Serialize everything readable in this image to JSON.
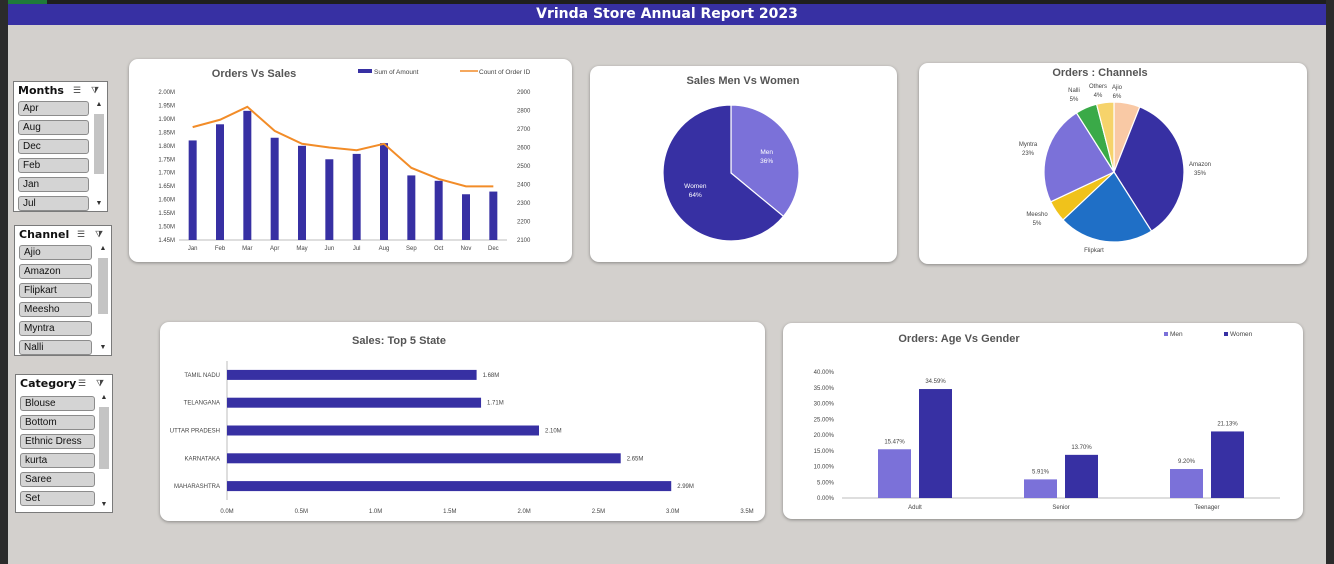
{
  "title": "Vrinda Store Annual Report 2023",
  "colors": {
    "header": "#3730a3",
    "series_dark": "#3730a3",
    "series_light": "#7b71d9",
    "line": "#f28c28"
  },
  "slicers": {
    "months": {
      "title": "Months",
      "items": [
        "Apr",
        "Aug",
        "Dec",
        "Feb",
        "Jan",
        "Jul"
      ]
    },
    "channel": {
      "title": "Channel",
      "items": [
        "Ajio",
        "Amazon",
        "Flipkart",
        "Meesho",
        "Myntra",
        "Nalli"
      ]
    },
    "category": {
      "title": "Category",
      "items": [
        "Blouse",
        "Bottom",
        "Ethnic Dress",
        "kurta",
        "Saree",
        "Set"
      ]
    },
    "icons": {
      "multi_select": "multi-select-icon",
      "clear_filter": "clear-filter-icon",
      "scroll_up": "scroll-up-icon",
      "scroll_down": "scroll-down-icon"
    }
  },
  "chart_data": [
    {
      "id": "orders_vs_sales",
      "type": "bar",
      "title": "Orders Vs Sales",
      "categories": [
        "Jan",
        "Feb",
        "Mar",
        "Apr",
        "May",
        "Jun",
        "Jul",
        "Aug",
        "Sep",
        "Oct",
        "Nov",
        "Dec"
      ],
      "series": [
        {
          "name": "Sum of Amount",
          "type": "bar",
          "axis": "left",
          "values": [
            1.82,
            1.88,
            1.93,
            1.83,
            1.8,
            1.75,
            1.77,
            1.81,
            1.69,
            1.67,
            1.62,
            1.63
          ]
        },
        {
          "name": "Count of Order ID",
          "type": "line",
          "axis": "right",
          "values": [
            2710,
            2750,
            2820,
            2690,
            2620,
            2600,
            2585,
            2620,
            2490,
            2430,
            2390,
            2390
          ]
        }
      ],
      "y_left_ticks": [
        "1.45M",
        "1.50M",
        "1.55M",
        "1.60M",
        "1.65M",
        "1.70M",
        "1.75M",
        "1.80M",
        "1.85M",
        "1.90M",
        "1.95M",
        "2.00M"
      ],
      "ylim_left": [
        1.45,
        2.0
      ],
      "y_right_ticks": [
        "2100",
        "2200",
        "2300",
        "2400",
        "2500",
        "2600",
        "2700",
        "2800",
        "2900"
      ],
      "ylim_right": [
        2100,
        2900
      ],
      "legend": "top"
    },
    {
      "id": "sales_men_women",
      "type": "pie",
      "title": "Sales Men Vs Women",
      "slices": [
        {
          "label": "Men",
          "value": 36,
          "pct_label": "36%",
          "color": "#7b71d9"
        },
        {
          "label": "Women",
          "value": 64,
          "pct_label": "64%",
          "color": "#3730a3"
        }
      ]
    },
    {
      "id": "orders_channels",
      "type": "pie",
      "title": "Orders : Channels",
      "slices": [
        {
          "label": "Ajio",
          "value": 6,
          "pct_label": "6%",
          "color": "#f9c9a5"
        },
        {
          "label": "Amazon",
          "value": 35,
          "pct_label": "35%",
          "color": "#3730a3"
        },
        {
          "label": "Flipkart",
          "value": 22,
          "pct_label": "",
          "color": "#1f6fc6"
        },
        {
          "label": "Meesho",
          "value": 5,
          "pct_label": "5%",
          "color": "#f0c21b"
        },
        {
          "label": "Myntra",
          "value": 23,
          "pct_label": "23%",
          "color": "#7b71d9"
        },
        {
          "label": "Nalli",
          "value": 5,
          "pct_label": "5%",
          "color": "#3aaa48"
        },
        {
          "label": "Others",
          "value": 4,
          "pct_label": "4%",
          "color": "#f6d36b"
        }
      ]
    },
    {
      "id": "sales_top5_state",
      "type": "bar",
      "orientation": "horizontal",
      "title": "Sales: Top 5 State",
      "categories": [
        "TAMIL NADU",
        "TELANGANA",
        "UTTAR PRADESH",
        "KARNATAKA",
        "MAHARASHTRA"
      ],
      "values": [
        1.68,
        1.71,
        2.1,
        2.65,
        2.99
      ],
      "value_labels": [
        "1.68M",
        "1.71M",
        "2.10M",
        "2.65M",
        "2.99M"
      ],
      "x_ticks": [
        "0.0M",
        "0.5M",
        "1.0M",
        "1.5M",
        "2.0M",
        "2.5M",
        "3.0M",
        "3.5M"
      ],
      "xlim": [
        0,
        3.5
      ]
    },
    {
      "id": "orders_age_gender",
      "type": "bar",
      "title": "Orders: Age Vs Gender",
      "categories": [
        "Adult",
        "Senior",
        "Teenager"
      ],
      "series": [
        {
          "name": "Men",
          "values": [
            15.47,
            5.91,
            9.2
          ],
          "labels": [
            "15.47%",
            "5.91%",
            "9.20%"
          ],
          "color": "#7b71d9"
        },
        {
          "name": "Women",
          "values": [
            34.59,
            13.7,
            21.13
          ],
          "labels": [
            "34.59%",
            "13.70%",
            "21.13%"
          ],
          "color": "#3730a3"
        }
      ],
      "y_ticks": [
        "0.00%",
        "5.00%",
        "10.00%",
        "15.00%",
        "20.00%",
        "25.00%",
        "30.00%",
        "35.00%",
        "40.00%"
      ],
      "ylim": [
        0,
        40
      ],
      "legend": "top-right"
    }
  ]
}
